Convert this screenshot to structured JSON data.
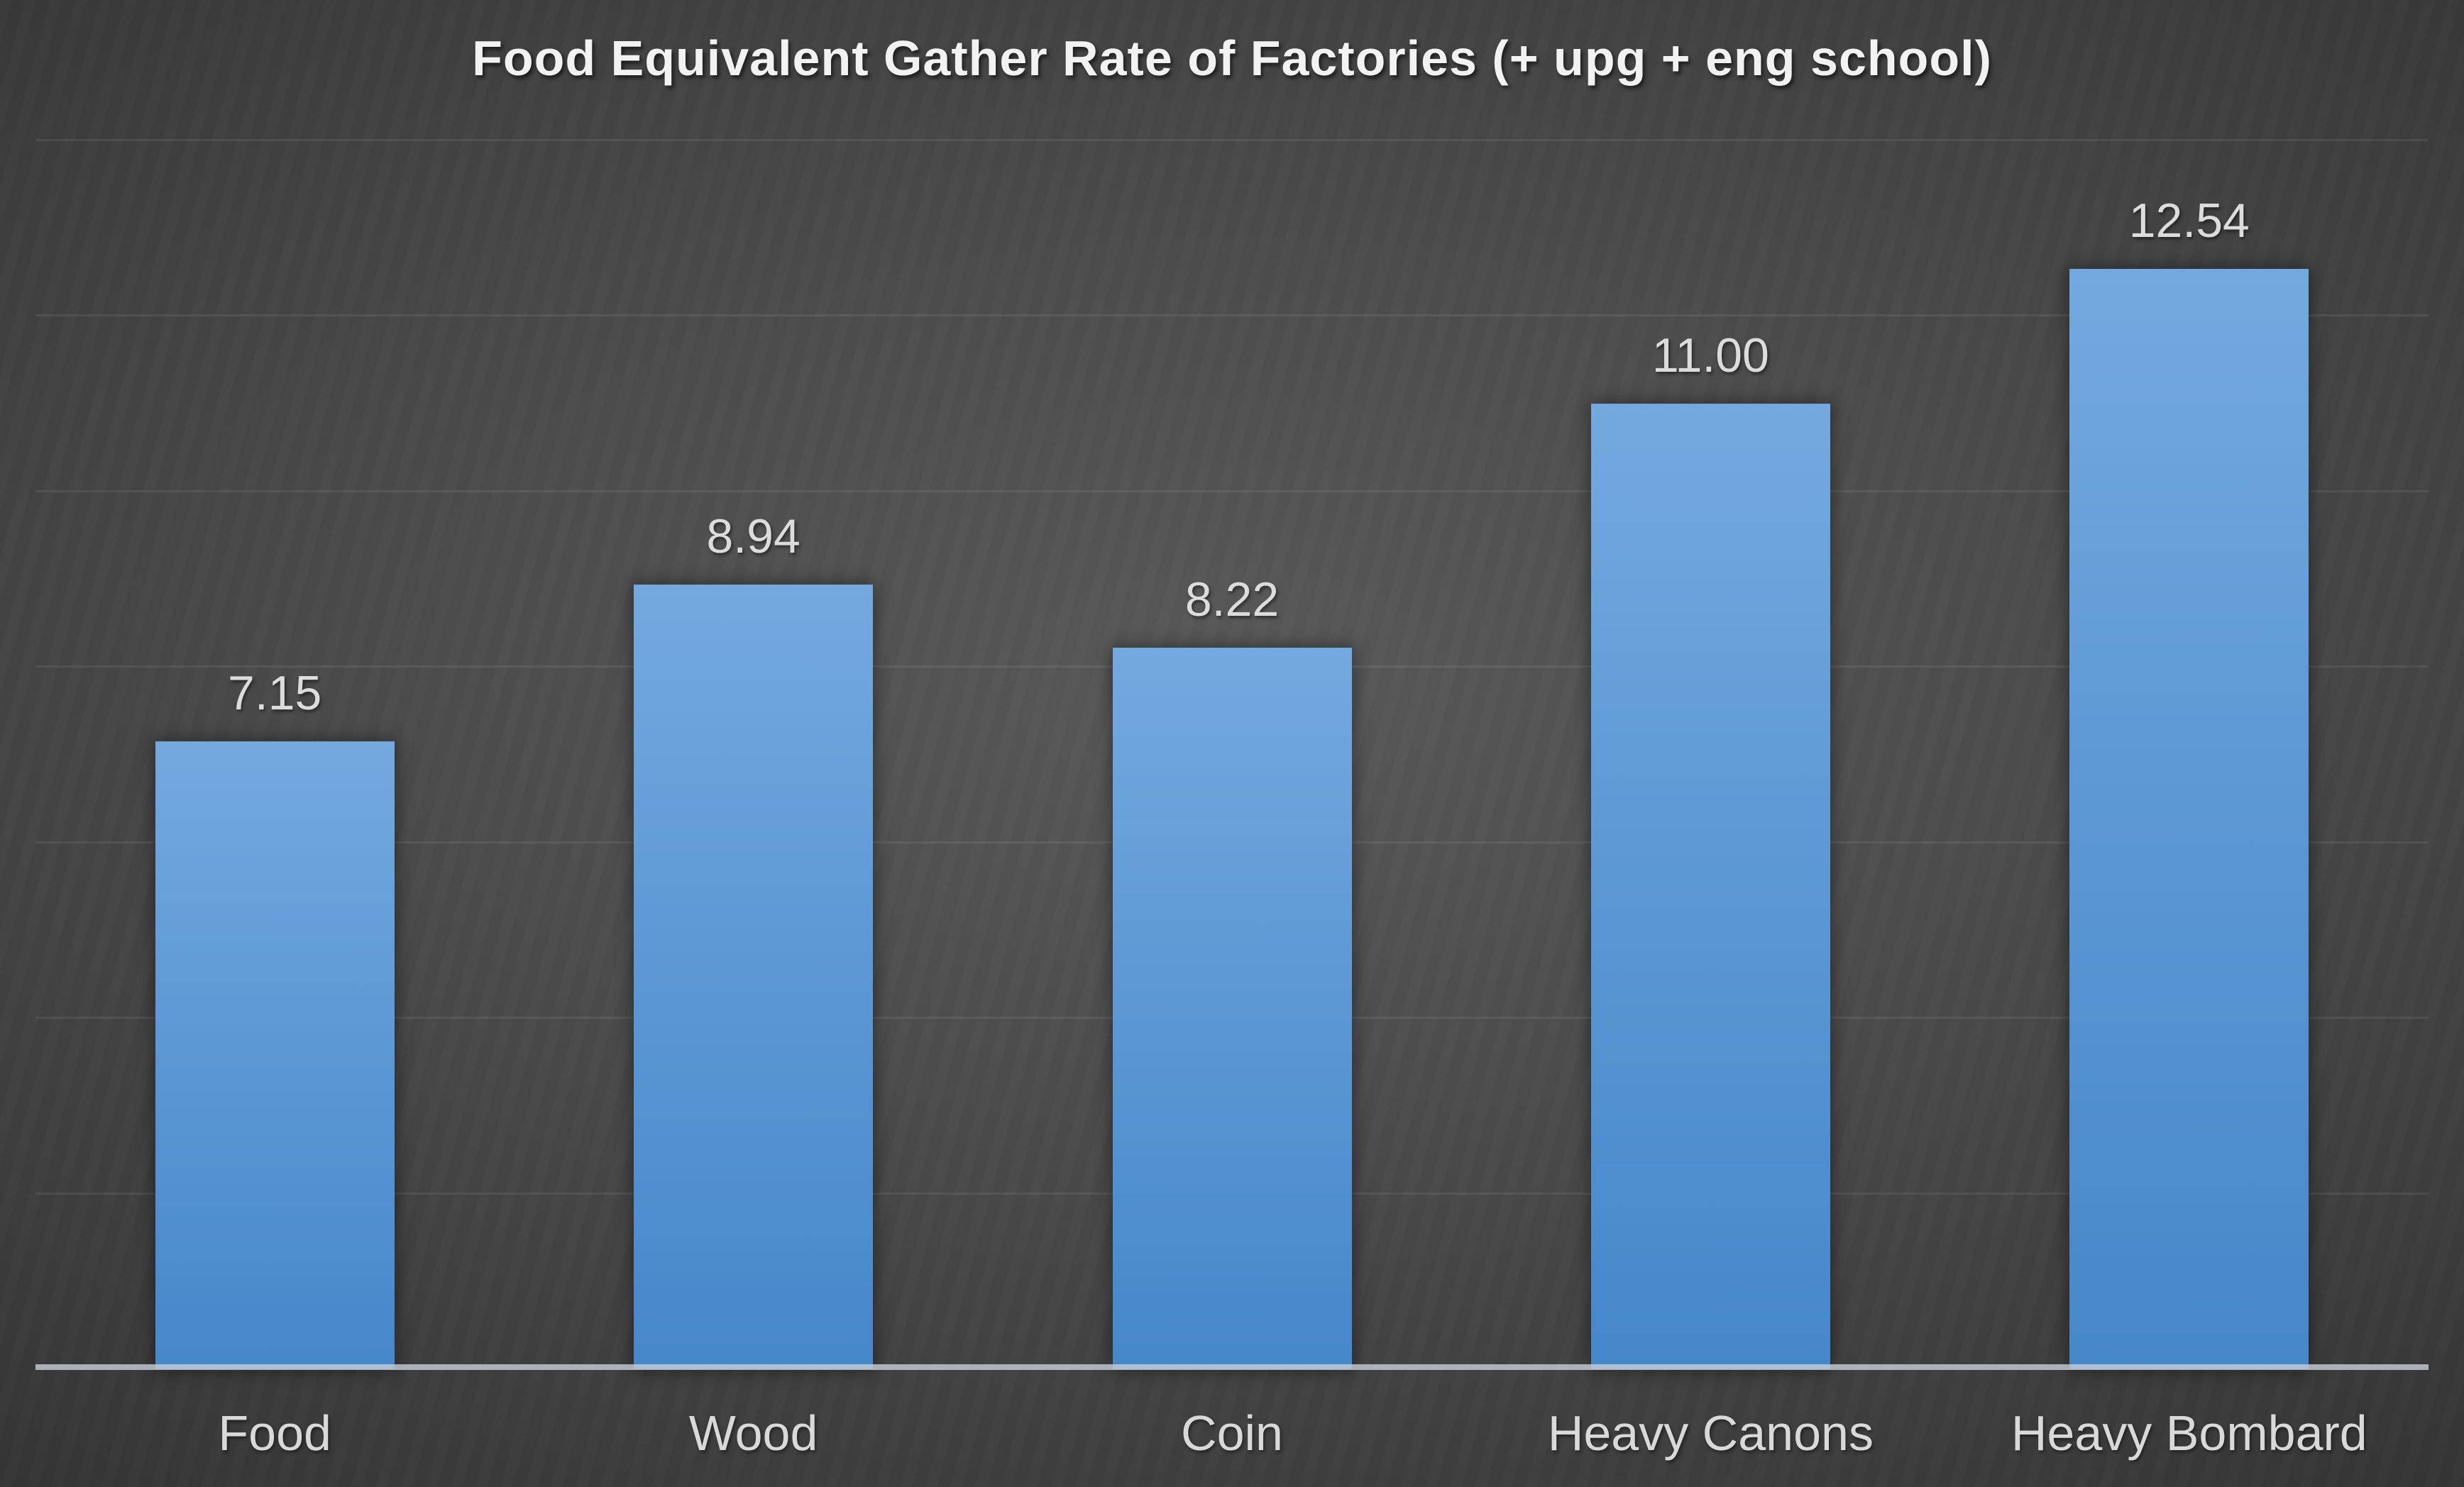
{
  "chart_data": {
    "type": "bar",
    "title": "Food Equivalent Gather Rate of Factories (+ upg + eng school)",
    "categories": [
      "Food",
      "Wood",
      "Coin",
      "Heavy Canons",
      "Heavy Bombard"
    ],
    "values": [
      7.15,
      8.94,
      8.22,
      11.0,
      12.54
    ],
    "value_labels": [
      "7.15",
      "8.94",
      "8.22",
      "11.00",
      "12.54"
    ],
    "xlabel": "",
    "ylabel": "",
    "ylim": [
      0,
      14
    ],
    "gridline_interval": 2,
    "grid": "on",
    "legend": "none",
    "series_count": 1,
    "colors": {
      "bar_top": "#74a9df",
      "bar_bottom": "#4687ca",
      "background_center": "#575757",
      "background_edge": "#232323",
      "gridline": "rgba(255,255,255,0.08)",
      "axis_line": "#aab2bf",
      "label_text": "#d9d9d9",
      "title_text": "#f2f2f2"
    }
  }
}
